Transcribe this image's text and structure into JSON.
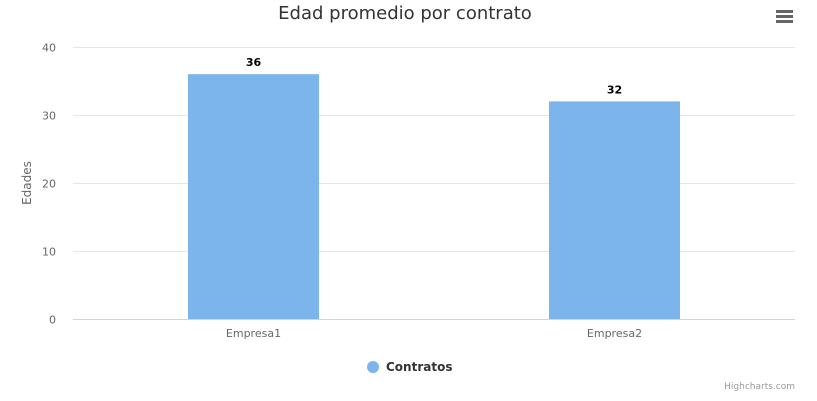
{
  "chart_data": {
    "type": "bar",
    "title": "Edad promedio por contrato",
    "xlabel": "",
    "ylabel": "Edades",
    "categories": [
      "Empresa1",
      "Empresa2"
    ],
    "series": [
      {
        "name": "Contratos",
        "values": [
          36,
          32
        ],
        "color": "#7cb5ec"
      }
    ],
    "ylim": [
      0,
      40
    ],
    "yticks": [
      0,
      10,
      20,
      30,
      40
    ],
    "grid": true,
    "legend": "bottom-center",
    "data_labels": true
  },
  "credits": "Highcharts.com",
  "menu_icon": "hamburger-menu-icon"
}
